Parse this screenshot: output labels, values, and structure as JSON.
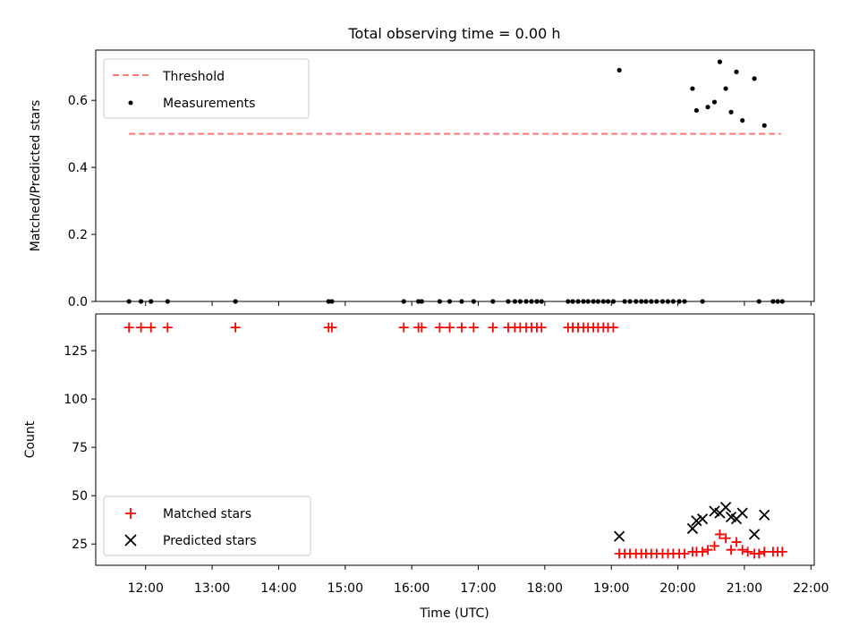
{
  "chart_data": [
    {
      "type": "scatter",
      "title": "Total observing time = 0.00 h",
      "xlabel": "",
      "ylabel": "Matched/Predicted stars",
      "xlim": [
        11.25,
        22.05
      ],
      "ylim": [
        0,
        0.75
      ],
      "yticks": [
        0.0,
        0.2,
        0.4,
        0.6
      ],
      "ytick_labels": [
        "0.0",
        "0.2",
        "0.4",
        "0.6"
      ],
      "legend_position": "upper-left",
      "threshold": {
        "name": "Threshold",
        "color": "#ff7777",
        "y": 0.5,
        "x": [
          11.75,
          21.55
        ]
      },
      "series": [
        {
          "name": "Measurements",
          "color": "#000000",
          "marker": "dot",
          "x": [
            11.75,
            11.93,
            12.08,
            12.33,
            13.35,
            14.75,
            14.8,
            15.88,
            16.1,
            16.15,
            16.42,
            16.57,
            16.75,
            16.93,
            17.22,
            17.45,
            17.55,
            17.63,
            17.72,
            17.8,
            17.88,
            17.95,
            18.35,
            18.42,
            18.5,
            18.58,
            18.65,
            18.73,
            18.8,
            18.88,
            18.95,
            19.03,
            19.12,
            19.2,
            19.28,
            19.37,
            19.45,
            19.52,
            19.6,
            19.68,
            19.77,
            19.85,
            19.93,
            20.02,
            20.1,
            20.22,
            20.28,
            20.37,
            20.45,
            20.55,
            20.63,
            20.72,
            20.8,
            20.88,
            20.97,
            21.15,
            21.22,
            21.3,
            21.43,
            21.5,
            21.57
          ],
          "y": [
            0,
            0,
            0,
            0,
            0,
            0,
            0,
            0,
            0,
            0,
            0,
            0,
            0,
            0,
            0,
            0,
            0,
            0,
            0,
            0,
            0,
            0,
            0,
            0,
            0,
            0,
            0,
            0,
            0,
            0,
            0,
            0,
            0.69,
            0,
            0,
            0,
            0,
            0,
            0,
            0,
            0,
            0,
            0,
            0,
            0,
            0.635,
            0.57,
            0,
            0.58,
            0.595,
            0.715,
            0.635,
            0.565,
            0.685,
            0.54,
            0.665,
            0,
            0.525,
            0,
            0,
            0
          ]
        }
      ]
    },
    {
      "type": "scatter",
      "title": "",
      "xlabel": "Time (UTC)",
      "ylabel": "Count",
      "xlim": [
        11.25,
        22.05
      ],
      "ylim": [
        14,
        144
      ],
      "xticks": [
        12,
        13,
        14,
        15,
        16,
        17,
        18,
        19,
        20,
        21,
        22
      ],
      "xtick_labels": [
        "12:00",
        "13:00",
        "14:00",
        "15:00",
        "16:00",
        "17:00",
        "18:00",
        "19:00",
        "20:00",
        "21:00",
        "22:00"
      ],
      "yticks": [
        25,
        50,
        75,
        100,
        125
      ],
      "ytick_labels": [
        "25",
        "50",
        "75",
        "100",
        "125"
      ],
      "legend_position": "lower-left",
      "series": [
        {
          "name": "Matched stars",
          "color": "#ff0000",
          "marker": "plus",
          "x": [
            11.75,
            11.93,
            12.08,
            12.33,
            13.35,
            14.75,
            14.8,
            15.88,
            16.1,
            16.15,
            16.42,
            16.57,
            16.75,
            16.93,
            17.22,
            17.45,
            17.55,
            17.63,
            17.72,
            17.8,
            17.88,
            17.95,
            18.35,
            18.42,
            18.5,
            18.58,
            18.65,
            18.73,
            18.8,
            18.88,
            18.95,
            19.03,
            19.12,
            19.2,
            19.28,
            19.37,
            19.45,
            19.52,
            19.6,
            19.68,
            19.77,
            19.85,
            19.93,
            20.02,
            20.1,
            20.22,
            20.28,
            20.37,
            20.45,
            20.55,
            20.63,
            20.72,
            20.8,
            20.88,
            20.97,
            21.05,
            21.15,
            21.22,
            21.3,
            21.43,
            21.5,
            21.57
          ],
          "y": [
            137,
            137,
            137,
            137,
            137,
            137,
            137,
            137,
            137,
            137,
            137,
            137,
            137,
            137,
            137,
            137,
            137,
            137,
            137,
            137,
            137,
            137,
            137,
            137,
            137,
            137,
            137,
            137,
            137,
            137,
            137,
            137,
            20,
            20,
            20,
            20,
            20,
            20,
            20,
            20,
            20,
            20,
            20,
            20,
            20,
            21,
            21,
            21,
            22,
            24,
            30,
            28,
            22,
            26,
            22,
            21,
            20,
            20,
            21,
            21,
            21,
            21
          ]
        },
        {
          "name": "Predicted stars",
          "color": "#000000",
          "marker": "x",
          "x": [
            19.12,
            20.22,
            20.28,
            20.37,
            20.55,
            20.63,
            20.72,
            20.8,
            20.88,
            20.97,
            21.15,
            21.3
          ],
          "y": [
            29,
            33,
            37,
            38,
            42,
            41,
            44,
            39,
            38,
            41,
            30,
            40
          ]
        }
      ]
    }
  ]
}
